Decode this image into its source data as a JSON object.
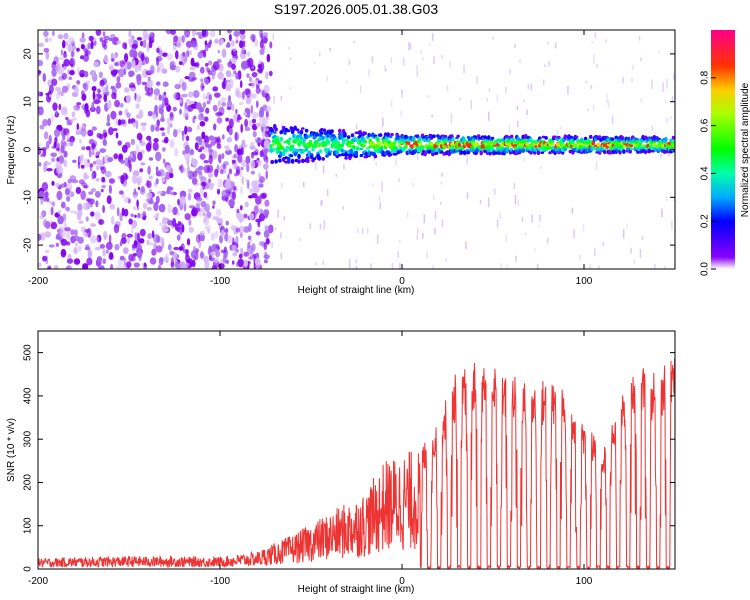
{
  "figure": {
    "title": "S197.2026.005.01.38.G03"
  },
  "chart_data": [
    {
      "type": "heatmap",
      "panel": "spectrogram",
      "xlabel": "Height of straight line (km)",
      "ylabel": "Frequency (Hz)",
      "xlim": [
        -200,
        150
      ],
      "ylim": [
        -25,
        25
      ],
      "xticks": [
        -200,
        -100,
        0,
        100
      ],
      "yticks": [
        -20,
        -10,
        0,
        10,
        20
      ],
      "xtick_labels": [
        "-200",
        "-100",
        "0",
        "100"
      ],
      "ytick_labels": [
        "-20",
        "-10",
        "0",
        "10",
        "20"
      ],
      "noise_region_x": [
        -200,
        -72
      ],
      "signal_center_freq_hz": 1,
      "signal_band_halfwidth_hz": {
        "at_-70": 4,
        "at_0": 2,
        "at_150": 1.5
      },
      "colorbar": {
        "label": "Normalized spectral amplitude",
        "range": [
          0,
          1
        ],
        "ticks": [
          "0.0",
          "0.2",
          "0.4",
          "0.6",
          "0.8"
        ],
        "tick_values": [
          0.0,
          0.2,
          0.4,
          0.6,
          0.8
        ]
      }
    },
    {
      "type": "line",
      "panel": "snr",
      "xlabel": "Height of straight line (km)",
      "ylabel": "SNR (10 * v/v)",
      "xlim": [
        -200,
        150
      ],
      "ylim": [
        0,
        550
      ],
      "xticks": [
        -200,
        -100,
        0,
        100
      ],
      "yticks": [
        0,
        100,
        200,
        300,
        400,
        500
      ],
      "xtick_labels": [
        "-200",
        "-100",
        "0",
        "100"
      ],
      "ytick_labels": [
        "0",
        "100",
        "200",
        "300",
        "400",
        "500"
      ],
      "color": "#ee3333",
      "series": [
        {
          "name": "SNR",
          "x": [
            -200,
            -150,
            -100,
            -80,
            -60,
            -40,
            -20,
            -10,
            0,
            10,
            20,
            30,
            40,
            50,
            60,
            70,
            80,
            90,
            100,
            110,
            120,
            130,
            140,
            150
          ],
          "y": [
            25,
            30,
            28,
            40,
            80,
            130,
            180,
            250,
            270,
            280,
            350,
            460,
            480,
            470,
            450,
            430,
            440,
            410,
            350,
            280,
            400,
            470,
            450,
            500
          ]
        }
      ]
    }
  ]
}
